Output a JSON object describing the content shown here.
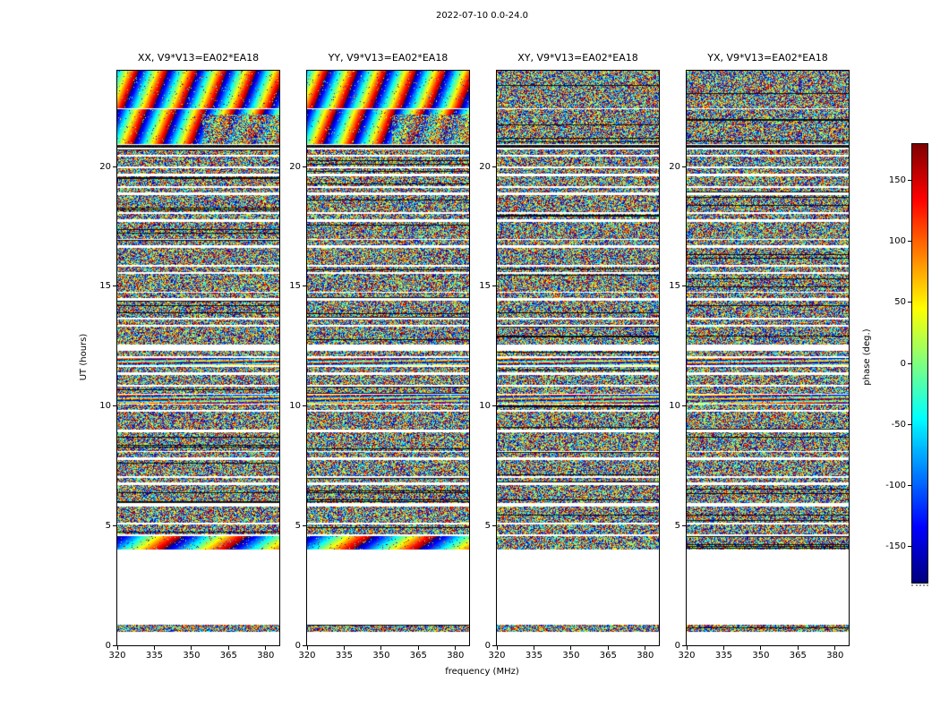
{
  "figure": {
    "title": "2022-07-10 0.0-24.0",
    "background": "#ffffff",
    "frame_color": "#000000"
  },
  "chart_data": {
    "type": "heatmap",
    "title": "2022-07-10 0.0-24.0",
    "xlabel": "frequency (MHz)",
    "ylabel": "UT (hours)",
    "x_range": [
      320,
      385.5
    ],
    "y_range": [
      0,
      24
    ],
    "x_ticks": [
      "320",
      "335",
      "350",
      "365",
      "380"
    ],
    "x_tick_values": [
      320,
      335,
      350,
      365,
      380
    ],
    "y_ticks": [
      "0",
      "5",
      "10",
      "15",
      "20"
    ],
    "y_tick_values": [
      0,
      5,
      10,
      15,
      20
    ],
    "grid": false,
    "panels": [
      {
        "id": "xx",
        "title": "XX, V9*V13=EA02*EA18",
        "style": "diag"
      },
      {
        "id": "yy",
        "title": "YY, V9*V13=EA02*EA18",
        "style": "diag"
      },
      {
        "id": "xy",
        "title": "XY, V9*V13=EA02*EA18",
        "style": "cross"
      },
      {
        "id": "yx",
        "title": "YX, V9*V13=EA02*EA18",
        "style": "cross"
      }
    ],
    "colorbar": {
      "label": "phase (deg.)",
      "colormap": "jet",
      "min": -180,
      "max": 180,
      "ticks": [
        "150",
        "100",
        "50",
        "0",
        "-50",
        "-100",
        "-150"
      ],
      "tick_values": [
        150,
        100,
        50,
        0,
        -50,
        -100,
        -150
      ]
    },
    "time_segments": [
      [
        0.55,
        0.85,
        "noise"
      ],
      [
        4.0,
        4.55,
        "smooth"
      ],
      [
        4.62,
        5.06,
        "noise"
      ],
      [
        5.12,
        5.8,
        "noise"
      ],
      [
        5.95,
        6.7,
        "noise"
      ],
      [
        6.8,
        7.0,
        "noise"
      ],
      [
        7.06,
        7.75,
        "noise"
      ],
      [
        7.85,
        8.06,
        "noise"
      ],
      [
        8.12,
        8.9,
        "noise"
      ],
      [
        9.0,
        9.75,
        "noise"
      ],
      [
        9.85,
        10.05,
        "noise"
      ],
      [
        10.1,
        10.45,
        "hstripes"
      ],
      [
        10.5,
        10.8,
        "noise"
      ],
      [
        10.88,
        11.3,
        "noise"
      ],
      [
        11.4,
        11.62,
        "noise"
      ],
      [
        11.7,
        12.0,
        "hstripes"
      ],
      [
        12.06,
        12.3,
        "noise"
      ],
      [
        12.55,
        13.3,
        "noise"
      ],
      [
        13.4,
        13.62,
        "noise"
      ],
      [
        13.68,
        14.4,
        "noise"
      ],
      [
        14.5,
        14.72,
        "noise"
      ],
      [
        14.78,
        15.5,
        "noise"
      ],
      [
        15.6,
        15.82,
        "noise"
      ],
      [
        15.88,
        16.6,
        "noise"
      ],
      [
        16.7,
        16.92,
        "noise"
      ],
      [
        16.98,
        17.7,
        "noise"
      ],
      [
        17.8,
        18.02,
        "noise"
      ],
      [
        18.08,
        18.8,
        "noise"
      ],
      [
        18.9,
        19.12,
        "noise"
      ],
      [
        19.18,
        19.6,
        "noise"
      ],
      [
        19.7,
        19.92,
        "noise"
      ],
      [
        20.0,
        20.42,
        "noise"
      ],
      [
        20.5,
        20.72,
        "noise"
      ],
      [
        20.78,
        20.88,
        "dark"
      ],
      [
        20.92,
        22.38,
        "top1"
      ],
      [
        22.44,
        24.0,
        "top2"
      ]
    ]
  }
}
